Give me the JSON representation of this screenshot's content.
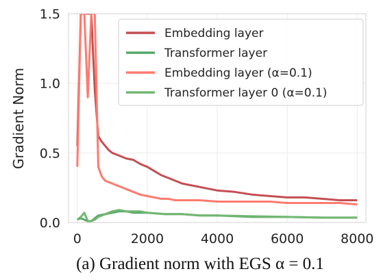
{
  "chart_data": {
    "type": "line",
    "caption": "(a) Gradient norm with EGS α = 0.1",
    "xlabel": "",
    "ylabel": "Gradient Norm",
    "xlim": [
      -250,
      8250
    ],
    "ylim": [
      0,
      1.5
    ],
    "xticks": [
      0,
      2000,
      4000,
      6000,
      8000
    ],
    "yticks": [
      0.0,
      0.5,
      1.0,
      1.5
    ],
    "xtick_labels": [
      "0",
      "2000",
      "4000",
      "6000",
      "8000"
    ],
    "ytick_labels": [
      "0.0",
      "0.5",
      "1.0",
      "1.5"
    ],
    "grid": true,
    "legend_position": "top-right",
    "series": [
      {
        "name": "Embedding layer",
        "color": "#c44e52",
        "x": [
          0,
          100,
          200,
          300,
          400,
          500,
          600,
          700,
          800,
          900,
          1000,
          1200,
          1400,
          1600,
          1800,
          2000,
          2200,
          2400,
          2600,
          2800,
          3000,
          3200,
          3400,
          3600,
          3800,
          4000,
          4500,
          5000,
          5500,
          6000,
          6500,
          7000,
          7500,
          8000
        ],
        "y": [
          0.55,
          1.5,
          1.5,
          1.5,
          1.5,
          0.95,
          0.62,
          0.58,
          0.55,
          0.52,
          0.5,
          0.48,
          0.46,
          0.45,
          0.42,
          0.4,
          0.37,
          0.34,
          0.32,
          0.3,
          0.28,
          0.27,
          0.26,
          0.25,
          0.24,
          0.23,
          0.22,
          0.2,
          0.19,
          0.18,
          0.18,
          0.17,
          0.16,
          0.16
        ]
      },
      {
        "name": "Transformer layer",
        "color": "#55a868",
        "x": [
          0,
          100,
          200,
          300,
          400,
          500,
          600,
          800,
          1000,
          1200,
          1400,
          1600,
          1800,
          2000,
          2500,
          3000,
          3500,
          4000,
          5000,
          6000,
          7000,
          8000
        ],
        "y": [
          0.02,
          0.03,
          0.02,
          0.01,
          0.01,
          0.03,
          0.05,
          0.06,
          0.07,
          0.08,
          0.08,
          0.07,
          0.07,
          0.07,
          0.06,
          0.06,
          0.05,
          0.05,
          0.04,
          0.04,
          0.035,
          0.035
        ]
      },
      {
        "name": "Embedding layer (α=0.1)",
        "color": "#ff7a6e",
        "x": [
          0,
          100,
          200,
          300,
          400,
          500,
          600,
          700,
          800,
          1000,
          1200,
          1400,
          1600,
          1800,
          2000,
          2200,
          2400,
          2600,
          2800,
          3000,
          3500,
          4000,
          4500,
          5000,
          5500,
          6000,
          6500,
          7000,
          7500,
          8000
        ],
        "y": [
          0.4,
          1.5,
          1.5,
          0.9,
          1.5,
          1.5,
          0.4,
          0.33,
          0.3,
          0.28,
          0.26,
          0.24,
          0.22,
          0.2,
          0.19,
          0.18,
          0.17,
          0.17,
          0.16,
          0.16,
          0.16,
          0.15,
          0.15,
          0.15,
          0.15,
          0.14,
          0.14,
          0.14,
          0.14,
          0.13
        ]
      },
      {
        "name": "Transformer layer 0 (α=0.1)",
        "color": "#72b672",
        "x": [
          0,
          100,
          200,
          300,
          400,
          500,
          600,
          800,
          1000,
          1200,
          1400,
          1600,
          1800,
          2000,
          2500,
          3000,
          3500,
          4000,
          5000,
          6000,
          7000,
          8000
        ],
        "y": [
          0.02,
          0.04,
          0.07,
          0.01,
          0.01,
          0.02,
          0.04,
          0.06,
          0.08,
          0.09,
          0.08,
          0.08,
          0.08,
          0.07,
          0.06,
          0.06,
          0.05,
          0.05,
          0.045,
          0.04,
          0.035,
          0.035
        ]
      }
    ]
  }
}
